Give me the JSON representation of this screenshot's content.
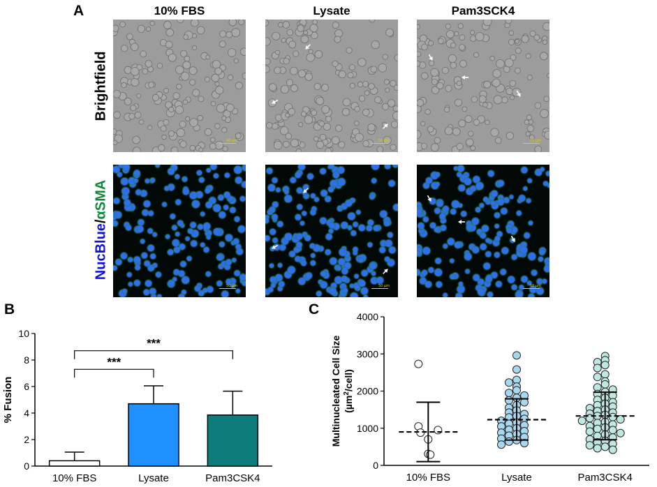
{
  "panel_a": {
    "letter": "A",
    "columns": [
      "10% FBS",
      "Lysate",
      "Pam3SCK4"
    ],
    "rows": {
      "brightfield": "Brightfield",
      "fluor_part1": "NucBlue",
      "fluor_sep": "/",
      "fluor_part2": "αSMA"
    },
    "scale_label": "50 µm",
    "colors": {
      "nucblue": "#1010e0",
      "asma": "#0a8a3a",
      "scale": "#e6d200"
    }
  },
  "chart_data": [
    {
      "panel": "B",
      "type": "bar",
      "categories": [
        "10% FBS",
        "Lysate",
        "Pam3CSK4"
      ],
      "values": [
        0.4,
        4.7,
        3.85
      ],
      "errors": [
        0.65,
        1.35,
        1.8
      ],
      "colors": [
        "#ffffff",
        "#1e90ff",
        "#0e7c7b"
      ],
      "ylabel": "% Fusion",
      "ylim": [
        0,
        10
      ],
      "yticks": [
        0,
        2,
        4,
        6,
        8,
        10
      ],
      "significance": [
        {
          "from": 0,
          "to": 1,
          "label": "***"
        },
        {
          "from": 0,
          "to": 2,
          "label": "***"
        }
      ]
    },
    {
      "panel": "C",
      "type": "scatter",
      "categories": [
        "10% FBS",
        "Lysate",
        "Pam3CSK4"
      ],
      "ylabel_line1": "Multinucleated Cell Size",
      "ylabel_line2_pre": "(µm",
      "ylabel_line2_sup": "2",
      "ylabel_line2_post": "/cell)",
      "ylim": [
        0,
        4000
      ],
      "yticks": [
        0,
        1000,
        2000,
        3000,
        4000
      ],
      "marker_colors": [
        "#ffffff",
        "#a8d8f0",
        "#c0e8e0"
      ],
      "groups": [
        {
          "mean": 900,
          "sd_low": 100,
          "sd_high": 1700,
          "points": [
            2730,
            1050,
            950,
            880,
            700,
            310,
            290
          ]
        },
        {
          "mean": 1230,
          "sd_low": 680,
          "sd_high": 1790,
          "points": [
            2960,
            2580,
            2300,
            2230,
            2120,
            2020,
            1950,
            1880,
            1820,
            1750,
            1700,
            1620,
            1550,
            1480,
            1420,
            1380,
            1330,
            1290,
            1250,
            1200,
            1150,
            1120,
            1080,
            1050,
            1000,
            960,
            920,
            880,
            840,
            800,
            760,
            720,
            680,
            640,
            600,
            560
          ]
        },
        {
          "mean": 1330,
          "sd_low": 690,
          "sd_high": 1970,
          "points": [
            2940,
            2830,
            2780,
            2700,
            2620,
            2450,
            2380,
            2260,
            2180,
            2100,
            2040,
            1980,
            1920,
            1880,
            1820,
            1760,
            1700,
            1660,
            1620,
            1580,
            1540,
            1500,
            1460,
            1420,
            1390,
            1360,
            1330,
            1300,
            1270,
            1240,
            1200,
            1170,
            1140,
            1100,
            1060,
            1020,
            980,
            950,
            910,
            870,
            830,
            790,
            750,
            700,
            660,
            620,
            580,
            540,
            500,
            460,
            420
          ]
        }
      ]
    }
  ]
}
